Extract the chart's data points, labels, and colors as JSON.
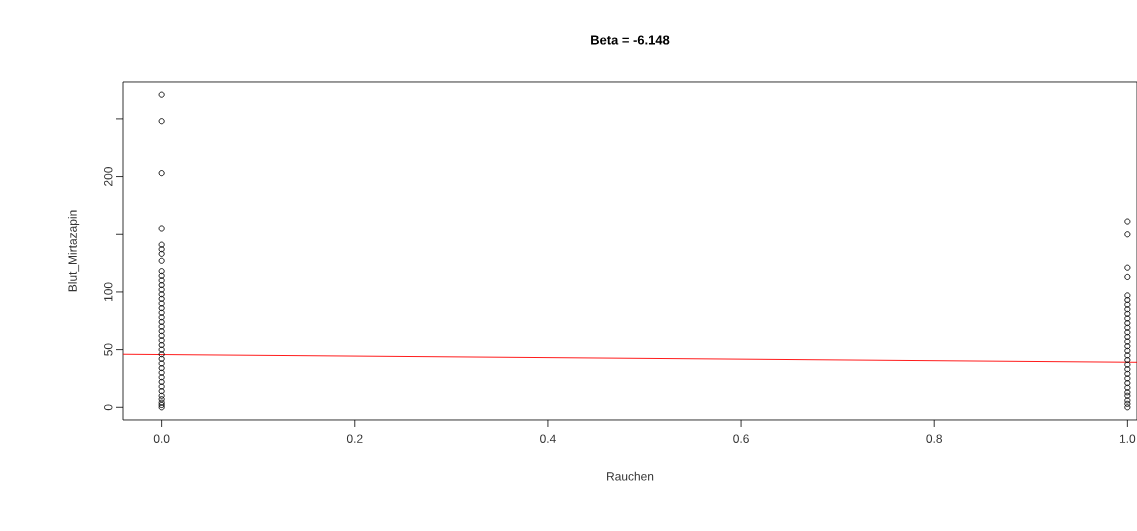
{
  "chart_data": {
    "type": "scatter",
    "title": "**Beta = -6.148**",
    "xlabel": "Rauchen",
    "ylabel": "Blut_Mirtazapin",
    "xlim": [
      -0.04,
      1.01
    ],
    "ylim": [
      -11,
      282
    ],
    "xticks": [
      {
        "value": 0,
        "label": "0.0"
      },
      {
        "value": 0.2,
        "label": "0.2"
      },
      {
        "value": 0.4,
        "label": "0.4"
      },
      {
        "value": 0.6,
        "label": "0.6"
      },
      {
        "value": 0.8,
        "label": "0.8"
      },
      {
        "value": 1,
        "label": "1.0"
      }
    ],
    "yticks": [
      0,
      50,
      100,
      {
        "value": 150,
        "label": null
      },
      200,
      {
        "value": 250,
        "label": null
      }
    ],
    "series": [
      {
        "color": "#000000",
        "marker": "circle",
        "x": [
          0,
          0,
          0,
          0,
          0,
          0,
          0,
          0,
          0,
          0,
          0,
          0,
          0,
          0,
          0,
          0,
          0,
          0,
          0,
          0,
          0,
          0,
          0,
          0,
          0,
          0,
          0,
          0,
          0,
          0,
          0,
          0,
          0,
          0,
          0,
          0,
          0,
          0,
          0,
          0,
          1,
          1,
          1,
          1,
          1,
          1,
          1,
          1,
          1,
          1,
          1,
          1,
          1,
          1,
          1,
          1,
          1,
          1,
          1,
          1,
          1,
          1,
          1,
          1,
          1,
          1,
          1,
          1,
          1,
          1
        ],
        "values": [
          271,
          248,
          203,
          155,
          141,
          137,
          133,
          127,
          118,
          114,
          110,
          106,
          102,
          98,
          94,
          90,
          86,
          82,
          78,
          74,
          70,
          66,
          62,
          58,
          54,
          50,
          46,
          42,
          38,
          34,
          30,
          26,
          22,
          18,
          14,
          10,
          7,
          4,
          2,
          0,
          161,
          150,
          121,
          113,
          97,
          93,
          89,
          85,
          81,
          77,
          73,
          69,
          65,
          61,
          57,
          53,
          49,
          45,
          41,
          37,
          33,
          29,
          25,
          21,
          17,
          13,
          10,
          6,
          3,
          0
        ]
      },
      {
        "type": "line",
        "color": "#ff0000",
        "x": [
          -0.04,
          1.01
        ],
        "values": [
          46,
          39
        ]
      }
    ]
  }
}
